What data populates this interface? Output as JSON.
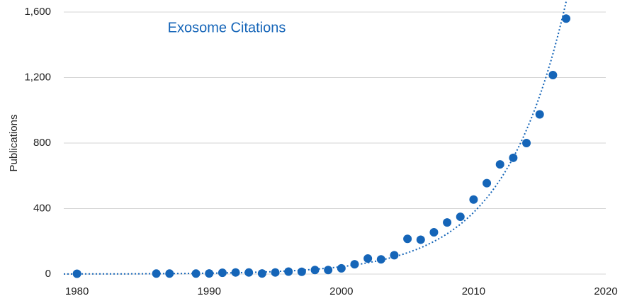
{
  "chart_data": {
    "type": "scatter",
    "title": "Exosome Citations",
    "y_label": "Publications",
    "x": [
      1980,
      1986,
      1987,
      1989,
      1990,
      1991,
      1992,
      1993,
      1994,
      1995,
      1996,
      1997,
      1998,
      1999,
      2000,
      2001,
      2002,
      2003,
      2004,
      2005,
      2006,
      2007,
      2008,
      2009,
      2010,
      2011,
      2012,
      2013,
      2014,
      2015,
      2016,
      2017
    ],
    "values": [
      2,
      3,
      3,
      3,
      4,
      8,
      10,
      10,
      4,
      10,
      15,
      14,
      25,
      25,
      35,
      60,
      95,
      90,
      115,
      215,
      210,
      255,
      315,
      350,
      455,
      555,
      670,
      710,
      800,
      975,
      1215,
      1560
    ],
    "color": "#1565b8",
    "trendline": true,
    "xlim": [
      1979,
      2020
    ],
    "xticks": [
      1980,
      1990,
      2000,
      2010,
      2020
    ],
    "ylim": [
      0,
      1600
    ],
    "yticks": [
      0,
      400,
      800,
      {
        "value": 1200,
        "label": "1,200"
      },
      {
        "value": 1600,
        "label": "1,600"
      }
    ],
    "grid": true
  }
}
